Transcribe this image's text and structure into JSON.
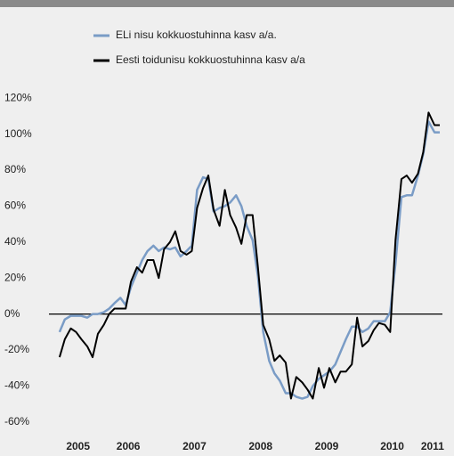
{
  "chart_data": {
    "type": "line",
    "x": [
      2005.46,
      2005.54,
      2005.63,
      2005.71,
      2005.79,
      2005.88,
      2005.96,
      2006.04,
      2006.13,
      2006.21,
      2006.29,
      2006.38,
      2006.46,
      2006.54,
      2006.63,
      2006.71,
      2006.79,
      2006.88,
      2006.96,
      2007.04,
      2007.13,
      2007.21,
      2007.29,
      2007.38,
      2007.46,
      2007.54,
      2007.63,
      2007.71,
      2007.79,
      2007.88,
      2007.96,
      2008.04,
      2008.13,
      2008.21,
      2008.29,
      2008.38,
      2008.46,
      2008.54,
      2008.63,
      2008.71,
      2008.79,
      2008.88,
      2008.96,
      2009.04,
      2009.13,
      2009.21,
      2009.29,
      2009.38,
      2009.46,
      2009.54,
      2009.63,
      2009.71,
      2009.79,
      2009.88,
      2009.96,
      2010.04,
      2010.13,
      2010.21,
      2010.29,
      2010.38,
      2010.46,
      2010.54,
      2010.63,
      2010.71,
      2010.79,
      2010.88,
      2010.96,
      2011.04,
      2011.13,
      2011.21
    ],
    "series": [
      {
        "name": "ELi nisu kokkuostuhinna kasv a/a.",
        "color": "#7a9cc6",
        "values": [
          -10,
          -3,
          -1,
          -1,
          -1,
          -2,
          0,
          0,
          1,
          3,
          6,
          9,
          5,
          15,
          23,
          30,
          35,
          38,
          35,
          37,
          36,
          37,
          32,
          35,
          38,
          69,
          76,
          75,
          57,
          59,
          60,
          62,
          66,
          60,
          49,
          41,
          21,
          -10,
          -26,
          -33,
          -37,
          -44,
          -44,
          -46,
          -47,
          -46,
          -40,
          -36,
          -34,
          -32,
          -28,
          -21,
          -14,
          -7,
          -7,
          -10,
          -8,
          -4,
          -4,
          -4,
          1,
          28,
          65,
          66,
          66,
          77,
          89,
          107,
          101,
          101
        ]
      },
      {
        "name": "Eesti toidunisu kokkuostuhinna kasv a/a",
        "color": "#000000",
        "values": [
          -24,
          -14,
          -8,
          -10,
          -14,
          -18,
          -24,
          -11,
          -6,
          0,
          3,
          3,
          3,
          18,
          26,
          23,
          30,
          30,
          20,
          36,
          40,
          46,
          35,
          33,
          35,
          59,
          70,
          77,
          58,
          49,
          69,
          55,
          48,
          39,
          55,
          55,
          26,
          -6,
          -14,
          -26,
          -23,
          -27,
          -47,
          -35,
          -38,
          -42,
          -47,
          -30,
          -41,
          -30,
          -38,
          -32,
          -32,
          -28,
          -2,
          -18,
          -15,
          -9,
          -5,
          -6,
          -10,
          41,
          75,
          77,
          73,
          78,
          90,
          112,
          105,
          105
        ]
      }
    ],
    "xlim": [
      2005.3,
      2011.25
    ],
    "xticks": [
      {
        "value": 2005.74,
        "label": "2005"
      },
      {
        "value": 2006.5,
        "label": "2006"
      },
      {
        "value": 2007.5,
        "label": "2007"
      },
      {
        "value": 2008.5,
        "label": "2008"
      },
      {
        "value": 2009.5,
        "label": "2009"
      },
      {
        "value": 2010.49,
        "label": "2010"
      },
      {
        "value": 2011.1,
        "label": "2011"
      }
    ],
    "ylim": [
      -70,
      130
    ],
    "yticks": [
      {
        "value": -60,
        "label": "-60%"
      },
      {
        "value": -40,
        "label": "-40%"
      },
      {
        "value": -20,
        "label": "-20%"
      },
      {
        "value": 0,
        "label": "0%"
      },
      {
        "value": 20,
        "label": "20%"
      },
      {
        "value": 40,
        "label": "40%"
      },
      {
        "value": 60,
        "label": "60%"
      },
      {
        "value": 80,
        "label": "80%"
      },
      {
        "value": 100,
        "label": "100%"
      },
      {
        "value": 120,
        "label": "120%"
      }
    ]
  }
}
